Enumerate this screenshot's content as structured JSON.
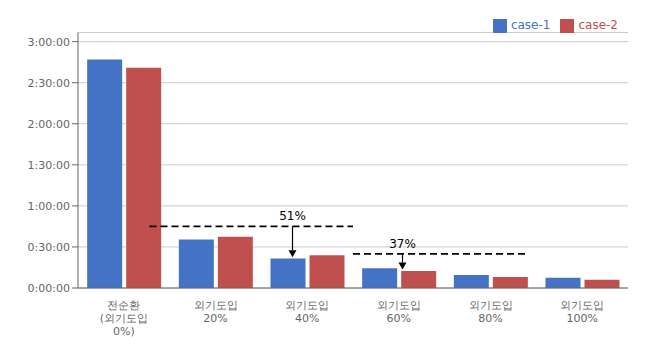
{
  "chart_data": {
    "type": "bar",
    "categories": [
      "전순환\n(외기도입\n0%)",
      "외기도입\n20%",
      "외기도입\n40%",
      "외기도입\n60%",
      "외기도입\n80%",
      "외기도입\n100%"
    ],
    "series": [
      {
        "name": "case-1",
        "color": "#4472C4",
        "values": [
          10020,
          2130,
          1290,
          870,
          570,
          450
        ]
      },
      {
        "name": "case-2",
        "color": "#C0504D",
        "values": [
          9660,
          2250,
          1440,
          750,
          480,
          360
        ]
      }
    ],
    "ylim": [
      0,
      11200
    ],
    "yticks": [
      {
        "value": 0,
        "label": "0:00:00"
      },
      {
        "value": 1800,
        "label": "0:30:00"
      },
      {
        "value": 3600,
        "label": "1:00:00"
      },
      {
        "value": 5400,
        "label": "1:30:00"
      },
      {
        "value": 7200,
        "label": "2:00:00"
      },
      {
        "value": 9000,
        "label": "2:30:00"
      },
      {
        "value": 10800,
        "label": "3:00:00"
      }
    ],
    "grid": true,
    "legend": "upper right",
    "annotations": [
      {
        "text": "51%",
        "x": 1.95,
        "y": 2700,
        "arrow_tip_y": 1350,
        "line_x": [
          0.65,
          2.5
        ]
      },
      {
        "text": "37%",
        "x": 2.95,
        "y": 1500,
        "arrow_tip_y": 810,
        "line_x": [
          2.5,
          4.1
        ]
      }
    ]
  }
}
